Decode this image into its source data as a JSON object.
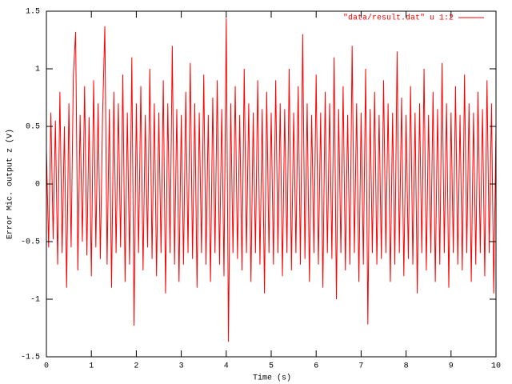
{
  "chart_data": {
    "type": "line",
    "xlabel": "Time (s)",
    "ylabel": "Error Mic. output z (V)",
    "xlim": [
      0,
      10
    ],
    "xticks": [
      0,
      1,
      2,
      3,
      4,
      5,
      6,
      7,
      8,
      9,
      10
    ],
    "ylim": [
      -1.5,
      1.5
    ],
    "yticks": [
      -1.5,
      -1,
      -0.5,
      0,
      0.5,
      1,
      1.5
    ],
    "legend": "top right",
    "x": [
      0,
      0.05,
      0.1,
      0.15,
      0.2,
      0.25,
      0.3,
      0.35,
      0.4,
      0.45,
      0.5,
      0.55,
      0.6,
      0.65,
      0.7,
      0.75,
      0.8,
      0.85,
      0.9,
      0.95,
      1,
      1.05,
      1.1,
      1.15,
      1.2,
      1.25,
      1.3,
      1.35,
      1.4,
      1.45,
      1.5,
      1.55,
      1.6,
      1.65,
      1.7,
      1.75,
      1.8,
      1.85,
      1.9,
      1.95,
      2,
      2.05,
      2.1,
      2.15,
      2.2,
      2.25,
      2.3,
      2.35,
      2.4,
      2.45,
      2.5,
      2.55,
      2.6,
      2.65,
      2.7,
      2.75,
      2.8,
      2.85,
      2.9,
      2.95,
      3,
      3.05,
      3.1,
      3.15,
      3.2,
      3.25,
      3.3,
      3.35,
      3.4,
      3.45,
      3.5,
      3.55,
      3.6,
      3.65,
      3.7,
      3.75,
      3.8,
      3.85,
      3.9,
      3.95,
      4,
      4.05,
      4.1,
      4.15,
      4.2,
      4.25,
      4.3,
      4.35,
      4.4,
      4.45,
      4.5,
      4.55,
      4.6,
      4.65,
      4.7,
      4.75,
      4.8,
      4.85,
      4.9,
      4.95,
      5,
      5.05,
      5.1,
      5.15,
      5.2,
      5.25,
      5.3,
      5.35,
      5.4,
      5.45,
      5.5,
      5.55,
      5.6,
      5.65,
      5.7,
      5.75,
      5.8,
      5.85,
      5.9,
      5.95,
      6,
      6.05,
      6.1,
      6.15,
      6.2,
      6.25,
      6.3,
      6.35,
      6.4,
      6.45,
      6.5,
      6.55,
      6.6,
      6.65,
      6.7,
      6.75,
      6.8,
      6.85,
      6.9,
      6.95,
      7,
      7.05,
      7.1,
      7.15,
      7.2,
      7.25,
      7.3,
      7.35,
      7.4,
      7.45,
      7.5,
      7.55,
      7.6,
      7.65,
      7.7,
      7.75,
      7.8,
      7.85,
      7.9,
      7.95,
      8,
      8.05,
      8.1,
      8.15,
      8.2,
      8.25,
      8.3,
      8.35,
      8.4,
      8.45,
      8.5,
      8.55,
      8.6,
      8.65,
      8.7,
      8.75,
      8.8,
      8.85,
      8.9,
      8.95,
      9,
      9.05,
      9.1,
      9.15,
      9.2,
      9.25,
      9.3,
      9.35,
      9.4,
      9.45,
      9.5,
      9.55,
      9.6,
      9.65,
      9.7,
      9.75,
      9.8,
      9.85,
      9.9,
      9.95,
      10
    ],
    "series": [
      {
        "name": "\"data/result.dat\" u 1:2",
        "color": "#ff0000",
        "values": [
          0.3,
          -0.55,
          0.62,
          -0.48,
          0.55,
          -0.7,
          0.8,
          -0.6,
          0.5,
          -0.9,
          0.7,
          -0.55,
          0.95,
          1.32,
          -0.75,
          0.6,
          -0.5,
          0.85,
          -0.62,
          0.58,
          -0.8,
          0.9,
          -0.55,
          0.7,
          -0.65,
          0.6,
          1.37,
          -0.7,
          0.65,
          -0.9,
          0.8,
          -0.6,
          0.7,
          -0.55,
          0.95,
          -0.85,
          0.62,
          -0.7,
          1.1,
          -1.23,
          0.7,
          -0.6,
          0.85,
          -0.75,
          0.6,
          -0.55,
          1.0,
          -0.65,
          0.7,
          -0.8,
          0.62,
          -0.6,
          0.9,
          -0.95,
          0.7,
          -0.6,
          1.2,
          -0.7,
          0.65,
          -0.85,
          0.6,
          -0.7,
          0.8,
          -0.6,
          1.05,
          -0.65,
          0.7,
          -0.9,
          0.62,
          -0.6,
          0.95,
          -0.7,
          0.6,
          -0.85,
          0.75,
          -0.6,
          0.9,
          -0.7,
          0.65,
          -0.8,
          1.44,
          -1.37,
          0.7,
          -0.6,
          0.85,
          -0.65,
          0.6,
          -0.75,
          1.0,
          -0.6,
          0.7,
          -0.85,
          0.62,
          -0.6,
          0.9,
          -0.7,
          0.65,
          -0.95,
          0.8,
          -0.6,
          0.62,
          -0.7,
          0.9,
          -0.6,
          0.7,
          -0.8,
          0.65,
          -0.6,
          1.0,
          -0.75,
          0.62,
          -0.6,
          0.85,
          -0.7,
          1.3,
          -0.65,
          0.7,
          -0.85,
          0.6,
          -0.6,
          0.95,
          -0.7,
          0.62,
          -0.9,
          0.8,
          -0.6,
          0.7,
          -0.65,
          1.1,
          -1.0,
          0.65,
          -0.6,
          0.85,
          -0.75,
          0.6,
          -0.7,
          1.2,
          -0.6,
          0.7,
          -0.85,
          0.62,
          -0.7,
          1.0,
          -1.22,
          0.65,
          -0.6,
          0.8,
          -0.7,
          0.6,
          -0.65,
          0.9,
          -0.6,
          0.7,
          -0.85,
          0.62,
          -0.7,
          1.15,
          -0.6,
          0.75,
          -0.8,
          0.6,
          -0.65,
          0.85,
          -0.7,
          0.62,
          -0.95,
          0.7,
          -0.6,
          1.0,
          -0.75,
          0.6,
          -0.6,
          0.8,
          -0.85,
          0.65,
          -0.7,
          1.05,
          -0.6,
          0.7,
          -0.9,
          0.62,
          -0.6,
          0.85,
          -0.7,
          0.6,
          -0.75,
          0.95,
          -0.6,
          0.7,
          -0.85,
          0.62,
          -0.7,
          0.8,
          -0.6,
          0.65,
          -0.8,
          0.9,
          -0.6,
          0.7,
          -0.95,
          0.5
        ]
      }
    ]
  }
}
